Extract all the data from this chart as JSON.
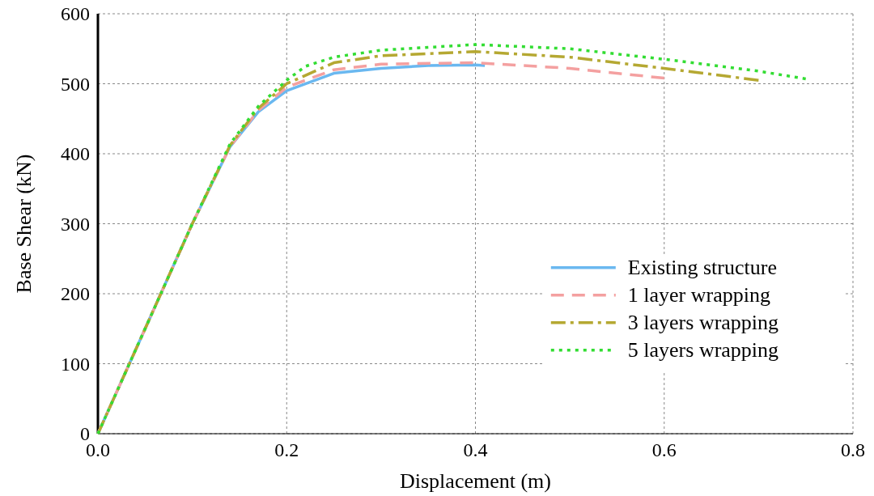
{
  "chart_data": {
    "type": "line",
    "xlabel": "Displacement (m)",
    "ylabel": "Base Shear (kN)",
    "xlim": [
      0,
      0.8
    ],
    "ylim": [
      0,
      600
    ],
    "xticks": [
      {
        "value": 0,
        "label": "0.0"
      },
      {
        "value": 0.2,
        "label": "0.2"
      },
      {
        "value": 0.4,
        "label": "0.4"
      },
      {
        "value": 0.6,
        "label": "0.6"
      },
      {
        "value": 0.8,
        "label": "0.8"
      }
    ],
    "yticks": [
      0,
      100,
      200,
      300,
      400,
      500,
      600
    ],
    "grid": true,
    "legend": "right",
    "series": [
      {
        "name": "Existing structure",
        "color": "#6ab8f0",
        "line_style": "solid",
        "x": [
          0,
          0.05,
          0.1,
          0.14,
          0.17,
          0.2,
          0.25,
          0.3,
          0.35,
          0.4,
          0.41
        ],
        "values": [
          0,
          150,
          300,
          410,
          460,
          490,
          515,
          522,
          526,
          527,
          526
        ]
      },
      {
        "name": "1 layer wrapping",
        "color": "#f4a0a0",
        "line_style": "dashed",
        "x": [
          0,
          0.05,
          0.1,
          0.14,
          0.17,
          0.2,
          0.25,
          0.3,
          0.4,
          0.5,
          0.6
        ],
        "values": [
          0,
          150,
          300,
          410,
          462,
          495,
          520,
          528,
          530,
          522,
          508
        ]
      },
      {
        "name": "3 layers wrapping",
        "color": "#b5a832",
        "line_style": "dashdot",
        "x": [
          0,
          0.05,
          0.1,
          0.14,
          0.17,
          0.2,
          0.25,
          0.3,
          0.4,
          0.5,
          0.6,
          0.7
        ],
        "values": [
          0,
          150,
          300,
          412,
          465,
          500,
          530,
          540,
          546,
          538,
          522,
          505
        ]
      },
      {
        "name": "5 layers wrapping",
        "color": "#33dd33",
        "line_style": "dotted",
        "x": [
          0,
          0.05,
          0.1,
          0.14,
          0.17,
          0.2,
          0.22,
          0.25,
          0.3,
          0.4,
          0.5,
          0.6,
          0.7,
          0.75
        ],
        "values": [
          0,
          150,
          300,
          414,
          468,
          505,
          525,
          538,
          548,
          556,
          550,
          535,
          518,
          507
        ]
      }
    ]
  }
}
